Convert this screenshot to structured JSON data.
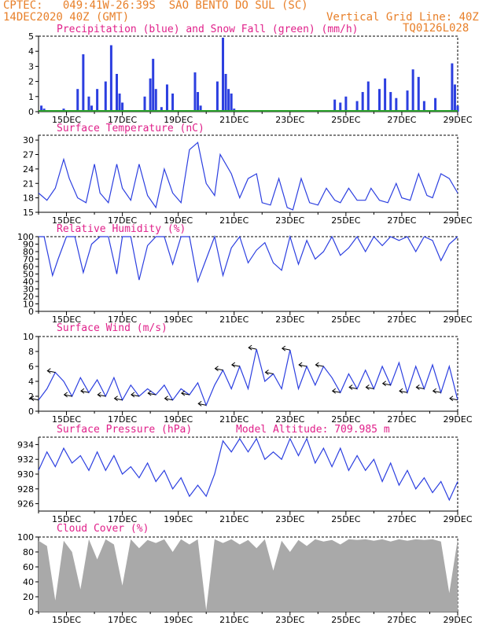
{
  "header": {
    "left_line1": "CPTEC:   049:41W-26:39S  SAO BENTO DO SUL (SC)",
    "left_line2": "14DEC2020 40Z (GMT)",
    "right_line2": "Vertical Grid Line: 40Z",
    "right_line3": "TQ0126L028"
  },
  "colors": {
    "header": "#e8802a",
    "title": "#e0208a",
    "line": "#2c3fe0",
    "precip": "#2c3fe0",
    "snow": "#2aa02a",
    "cloud": "#a9a9a9"
  },
  "x_ticks": [
    "15DEC",
    "17DEC",
    "19DEC",
    "21DEC",
    "23DEC",
    "25DEC",
    "27DEC",
    "29DEC"
  ],
  "panels": {
    "precip": {
      "title": "Precipitation (blue) and Snow Fall (green) (mm/h)"
    },
    "temp": {
      "title": "Surface Temperature (nC)"
    },
    "rh": {
      "title": "Relative Humidity (%)"
    },
    "wind": {
      "title": "Surface Wind (m/s)"
    },
    "pres": {
      "title": "Surface Pressure (hPa)",
      "extra": "Model Altitude: 709.985 m"
    },
    "cloud": {
      "title": "Cloud Cover (%)"
    }
  },
  "chart_data": [
    {
      "type": "bar",
      "name": "precip",
      "ylim": [
        0,
        5
      ],
      "yticks": [
        0,
        1,
        2,
        3,
        4,
        5
      ],
      "x": [
        14.1,
        14.2,
        14.3,
        14.9,
        15.4,
        15.6,
        15.8,
        15.9,
        16.1,
        16.4,
        16.6,
        16.8,
        16.9,
        17.0,
        17.8,
        18.0,
        18.1,
        18.2,
        18.4,
        18.6,
        18.8,
        19.6,
        19.7,
        19.8,
        20.4,
        20.6,
        20.7,
        20.8,
        20.9,
        21.0,
        22.0,
        24.6,
        24.8,
        25.0,
        25.4,
        25.6,
        25.8,
        26.2,
        26.4,
        26.6,
        26.8,
        27.2,
        27.4,
        27.6,
        27.8,
        28.2,
        28.8,
        28.9,
        29.0
      ],
      "values": [
        0.4,
        0.2,
        0.1,
        0.2,
        1.5,
        3.8,
        1.0,
        0.4,
        1.5,
        2.0,
        4.4,
        2.5,
        1.2,
        0.6,
        1.0,
        2.2,
        3.5,
        1.5,
        0.3,
        1.8,
        1.2,
        2.6,
        1.3,
        0.4,
        2.0,
        4.9,
        2.5,
        1.5,
        1.2,
        0.2,
        0.1,
        0.8,
        0.6,
        1.0,
        0.7,
        1.3,
        2.0,
        1.5,
        2.2,
        1.3,
        0.9,
        1.4,
        2.8,
        2.3,
        0.7,
        0.9,
        3.2,
        1.8,
        0.4
      ]
    },
    {
      "type": "line",
      "name": "temp",
      "ylim": [
        15,
        31
      ],
      "yticks": [
        15,
        18,
        21,
        24,
        27,
        30
      ],
      "x": [
        14,
        14.3,
        14.6,
        14.9,
        15.1,
        15.4,
        15.7,
        16.0,
        16.2,
        16.5,
        16.8,
        17.0,
        17.3,
        17.6,
        17.9,
        18.2,
        18.5,
        18.8,
        19.1,
        19.4,
        19.7,
        20.0,
        20.3,
        20.5,
        20.9,
        21.2,
        21.5,
        21.8,
        22.0,
        22.3,
        22.6,
        22.9,
        23.1,
        23.4,
        23.7,
        24.0,
        24.3,
        24.6,
        24.8,
        25.1,
        25.4,
        25.7,
        25.9,
        26.2,
        26.5,
        26.8,
        27.0,
        27.3,
        27.6,
        27.9,
        28.1,
        28.4,
        28.7,
        29.0
      ],
      "values": [
        19,
        17.5,
        20,
        26,
        22,
        18,
        17,
        25,
        19,
        17,
        25,
        20,
        17.5,
        25,
        18.5,
        16,
        24,
        19,
        17,
        28,
        29.5,
        21,
        18.5,
        27,
        23,
        18,
        22,
        23,
        17,
        16.5,
        22,
        16,
        15.5,
        22,
        17,
        16.5,
        20,
        17.5,
        17,
        20,
        17.5,
        17.5,
        20,
        17.5,
        17,
        21,
        18,
        17.5,
        23,
        18.5,
        18,
        23,
        22,
        19
      ]
    },
    {
      "type": "line",
      "name": "rh",
      "ylim": [
        0,
        100
      ],
      "yticks": [
        0,
        10,
        20,
        30,
        40,
        50,
        60,
        70,
        80,
        90,
        100
      ],
      "x": [
        14,
        14.2,
        14.5,
        14.7,
        15.0,
        15.3,
        15.6,
        15.9,
        16.2,
        16.5,
        16.8,
        17.0,
        17.3,
        17.6,
        17.9,
        18.2,
        18.5,
        18.8,
        19.1,
        19.4,
        19.7,
        20.0,
        20.3,
        20.6,
        20.9,
        21.2,
        21.5,
        21.8,
        22.1,
        22.4,
        22.7,
        23.0,
        23.3,
        23.6,
        23.9,
        24.2,
        24.5,
        24.8,
        25.1,
        25.4,
        25.7,
        26.0,
        26.3,
        26.6,
        26.9,
        27.2,
        27.5,
        27.8,
        28.1,
        28.4,
        28.7,
        29.0
      ],
      "values": [
        100,
        100,
        48,
        70,
        100,
        100,
        52,
        90,
        100,
        100,
        50,
        100,
        100,
        42,
        88,
        100,
        100,
        63,
        100,
        100,
        40,
        70,
        100,
        48,
        85,
        100,
        65,
        82,
        92,
        65,
        55,
        100,
        63,
        95,
        70,
        80,
        100,
        75,
        85,
        100,
        80,
        100,
        88,
        100,
        95,
        100,
        80,
        100,
        95,
        68,
        90,
        100
      ]
    },
    {
      "type": "line",
      "name": "wind",
      "ylim": [
        0,
        10
      ],
      "yticks": [
        0,
        2,
        4,
        6,
        8,
        10
      ],
      "x": [
        14,
        14.3,
        14.6,
        14.9,
        15.2,
        15.5,
        15.8,
        16.1,
        16.4,
        16.7,
        17.0,
        17.3,
        17.6,
        17.9,
        18.2,
        18.5,
        18.8,
        19.1,
        19.4,
        19.7,
        20.0,
        20.3,
        20.6,
        20.9,
        21.2,
        21.5,
        21.8,
        22.1,
        22.4,
        22.7,
        23.0,
        23.3,
        23.6,
        23.9,
        24.2,
        24.5,
        24.8,
        25.1,
        25.4,
        25.7,
        26.0,
        26.3,
        26.6,
        26.9,
        27.2,
        27.5,
        27.8,
        28.1,
        28.4,
        28.7,
        29.0
      ],
      "values": [
        1.5,
        3,
        5.2,
        4,
        2,
        4.5,
        2.5,
        4.2,
        2,
        4.5,
        1.5,
        3.5,
        2,
        3,
        2.2,
        3.5,
        1.5,
        3,
        2.2,
        3.8,
        0.8,
        3.5,
        5.5,
        3,
        6,
        3,
        8.3,
        4,
        5,
        3,
        8.2,
        3,
        6,
        3.5,
        6,
        4.5,
        2.5,
        5,
        3,
        5.5,
        3,
        6,
        3.5,
        6.5,
        2.5,
        6,
        3,
        6.2,
        2.5,
        6,
        1.5
      ]
    },
    {
      "type": "line",
      "name": "pres",
      "ylim": [
        925,
        935
      ],
      "yticks": [
        926,
        928,
        930,
        932,
        934
      ],
      "x": [
        14,
        14.3,
        14.6,
        14.9,
        15.2,
        15.5,
        15.8,
        16.1,
        16.4,
        16.7,
        17.0,
        17.3,
        17.6,
        17.9,
        18.2,
        18.5,
        18.8,
        19.1,
        19.4,
        19.7,
        20.0,
        20.3,
        20.6,
        20.9,
        21.2,
        21.5,
        21.8,
        22.1,
        22.4,
        22.7,
        23.0,
        23.3,
        23.6,
        23.9,
        24.2,
        24.5,
        24.8,
        25.1,
        25.4,
        25.7,
        26.0,
        26.3,
        26.6,
        26.9,
        27.2,
        27.5,
        27.8,
        28.1,
        28.4,
        28.7,
        29.0
      ],
      "values": [
        930.5,
        933,
        931,
        933.5,
        931.5,
        932.5,
        930.5,
        933,
        930.5,
        932.5,
        930,
        931,
        929.5,
        931.5,
        929,
        930.5,
        928,
        929.5,
        927,
        928.5,
        927,
        930,
        934.5,
        933,
        934.8,
        933,
        934.8,
        932,
        933,
        932,
        934.8,
        932.5,
        934.8,
        931.5,
        933.5,
        931,
        933.5,
        930.5,
        932.5,
        930.5,
        932,
        929,
        931.5,
        928.5,
        930.5,
        928,
        929.5,
        927.5,
        929,
        926.5,
        929
      ]
    },
    {
      "type": "area",
      "name": "cloud",
      "ylim": [
        0,
        100
      ],
      "yticks": [
        0,
        20,
        40,
        60,
        80,
        100
      ],
      "x": [
        14,
        14.3,
        14.6,
        14.9,
        15.2,
        15.5,
        15.8,
        16.1,
        16.4,
        16.7,
        17.0,
        17.3,
        17.6,
        17.9,
        18.2,
        18.5,
        18.8,
        19.1,
        19.4,
        19.7,
        20.0,
        20.3,
        20.6,
        20.9,
        21.2,
        21.5,
        21.8,
        22.1,
        22.4,
        22.7,
        23.0,
        23.3,
        23.6,
        23.9,
        24.2,
        24.5,
        24.8,
        25.1,
        25.4,
        25.7,
        26.0,
        26.3,
        26.6,
        26.9,
        27.2,
        27.5,
        27.8,
        28.1,
        28.4,
        28.7,
        29.0
      ],
      "values": [
        95,
        88,
        15,
        95,
        80,
        30,
        97,
        70,
        97,
        90,
        35,
        97,
        85,
        96,
        92,
        97,
        80,
        97,
        90,
        97,
        2,
        97,
        92,
        97,
        90,
        96,
        85,
        97,
        55,
        95,
        80,
        96,
        88,
        97,
        94,
        96,
        90,
        97,
        96,
        97,
        95,
        97,
        94,
        97,
        95,
        97,
        96,
        97,
        94,
        25,
        97
      ]
    }
  ]
}
